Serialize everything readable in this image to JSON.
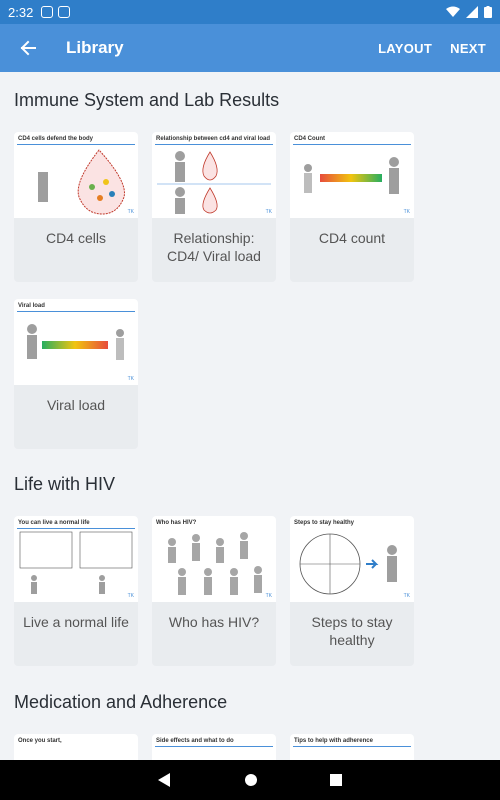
{
  "status_bar": {
    "time": "2:32"
  },
  "app_bar": {
    "title": "Library",
    "layout_label": "LAYOUT",
    "next_label": "NEXT"
  },
  "sections": [
    {
      "title": "Immune System and Lab Results",
      "cards": [
        {
          "label": "CD4 cells",
          "thumb_caption": "CD4 cells defend the body"
        },
        {
          "label": "Relationship: CD4/ Viral load",
          "thumb_caption": "Relationship between cd4 and viral load"
        },
        {
          "label": "CD4 count",
          "thumb_caption": "CD4 Count"
        },
        {
          "label": "Viral load",
          "thumb_caption": "Viral load"
        }
      ]
    },
    {
      "title": "Life with HIV",
      "cards": [
        {
          "label": "Live a normal life",
          "thumb_caption": "You can live a normal life"
        },
        {
          "label": "Who has HIV?",
          "thumb_caption": "Who has HIV?"
        },
        {
          "label": "Steps to stay healthy",
          "thumb_caption": "Steps to stay healthy"
        }
      ]
    },
    {
      "title": "Medication and Adherence",
      "cards": [
        {
          "thumb_caption": "Once you start,"
        },
        {
          "thumb_caption": "Side effects and what to do"
        },
        {
          "thumb_caption": "Tips to help with adherence"
        }
      ]
    }
  ],
  "thumb_brand": "TK",
  "colors": {
    "status_bar": "#2f7ec9",
    "app_bar": "#4a90d9",
    "background": "#f1f3f6",
    "card": "#e9ecef"
  }
}
